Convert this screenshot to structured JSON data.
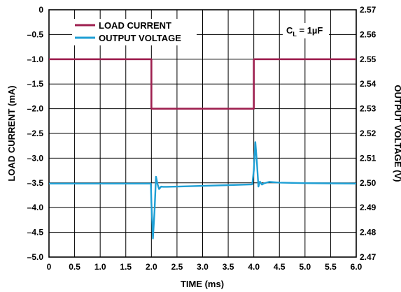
{
  "chart_data": {
    "type": "line",
    "xlabel": "TIME (ms)",
    "ylabel_left": "LOAD CURRENT (mA)",
    "ylabel_right": "OUTPUT VOLTAGE (V)",
    "xlim": [
      0,
      6
    ],
    "ylim_left": [
      -5,
      0
    ],
    "ylim_right": [
      2.47,
      2.57
    ],
    "grid": true,
    "legend_position": "top-left",
    "x_ticks": [
      "0",
      "0.5",
      "1.0",
      "1.5",
      "2.0",
      "2.5",
      "3.0",
      "3.5",
      "4.0",
      "4.5",
      "5.0",
      "5.5",
      "6.0"
    ],
    "y_left_ticks": [
      "0",
      "–0.5",
      "–1.0",
      "–1.5",
      "–2.0",
      "–2.5",
      "–3.0",
      "–3.5",
      "–4.0",
      "–4.5",
      "–5.0"
    ],
    "y_right_ticks": [
      "2.57",
      "2.56",
      "2.55",
      "2.54",
      "2.53",
      "2.52",
      "2.51",
      "2.50",
      "2.49",
      "2.48",
      "2.47"
    ],
    "annotation": {
      "main": "C",
      "sub": "L",
      "rest": " = 1µF"
    },
    "series": [
      {
        "name": "LOAD CURRENT",
        "axis": "left",
        "color": "#9e1f4f",
        "x": [
          0,
          2.0,
          2.0,
          4.0,
          4.0,
          6.0
        ],
        "y": [
          -1.0,
          -1.0,
          -2.0,
          -2.0,
          -1.0,
          -1.0
        ]
      },
      {
        "name": "OUTPUT VOLTAGE",
        "axis": "right",
        "color": "#1e9fd4",
        "x": [
          0,
          1.0,
          1.99,
          2.0,
          2.03,
          2.06,
          2.09,
          2.12,
          2.15,
          2.19,
          2.23,
          2.3,
          2.5,
          3.0,
          3.5,
          3.97,
          4.0,
          4.03,
          4.06,
          4.09,
          4.12,
          4.16,
          4.2,
          4.3,
          4.5,
          5.0,
          5.5,
          6.0
        ],
        "y": [
          2.4997,
          2.4997,
          2.4997,
          2.492,
          2.4775,
          2.488,
          2.5025,
          2.4995,
          2.4975,
          2.4985,
          2.4984,
          2.4984,
          2.4985,
          2.4988,
          2.4991,
          2.4994,
          2.505,
          2.5165,
          2.5085,
          2.4985,
          2.5005,
          2.4993,
          2.4998,
          2.5004,
          2.5001,
          2.4999,
          2.4998,
          2.4997
        ]
      }
    ]
  }
}
